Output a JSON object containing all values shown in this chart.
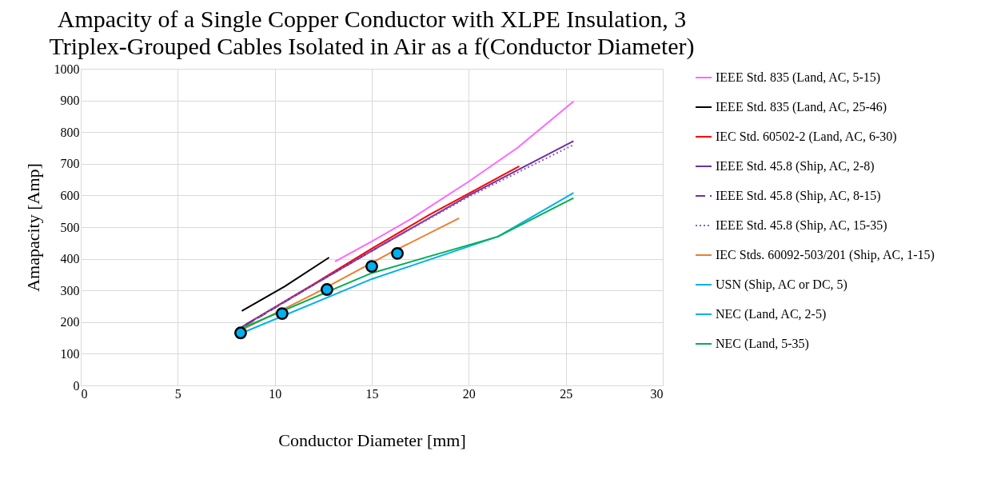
{
  "chart_data": {
    "type": "line",
    "title": "Ampacity of a Single Copper Conductor with XLPE Insulation, 3 Triplex-Grouped Cables Isolated in Air as a f(Conductor Diameter)",
    "xlabel": "Conductor Diameter [mm]",
    "ylabel": "Amapacity [Amp]",
    "xlim": [
      0,
      30
    ],
    "xticks": [
      0,
      5,
      10,
      15,
      20,
      25,
      30
    ],
    "ylim": [
      0,
      1000
    ],
    "yticks": [
      0,
      100,
      200,
      300,
      400,
      500,
      600,
      700,
      800,
      900,
      1000
    ],
    "grid": true,
    "legend": "right",
    "series": [
      {
        "name": "IEEE Std. 835 (Land, AC, 5-15)",
        "color": "#ff66ff",
        "line_style": "solid",
        "x": [
          13.1,
          15,
          17,
          20,
          22.5,
          25.4
        ],
        "values": [
          391,
          455,
          525,
          644,
          750,
          897
        ]
      },
      {
        "name": "IEEE Std. 835 (Land, AC, 25-46)",
        "color": "#000000",
        "line_style": "solid",
        "x": [
          8.3,
          10.5,
          12.8
        ],
        "values": [
          235,
          312,
          404
        ]
      },
      {
        "name": "IEC Std. 60502-2 (Land, AC, 6-30)",
        "color": "#ff0000",
        "line_style": "solid",
        "x": [
          8.5,
          12,
          15,
          18,
          22.6
        ],
        "values": [
          192,
          320,
          432,
          540,
          692
        ]
      },
      {
        "name": "IEEE Std. 45.8 (Ship, AC, 2-8)",
        "color": "#7030a0",
        "line_style": "solid",
        "x": [
          8.3,
          12,
          15,
          20,
          25.4
        ],
        "values": [
          185,
          318,
          425,
          600,
          772
        ]
      },
      {
        "name": "IEEE Std. 45.8 (Ship, AC, 8-15)",
        "color": "#7030a0",
        "line_style": "dashed",
        "x": [
          8.5,
          12,
          16
        ],
        "values": [
          190,
          318,
          460
        ]
      },
      {
        "name": "IEEE Std. 45.8 (Ship, AC, 15-35)",
        "color": "#8e5cc4",
        "line_style": "dotted",
        "x": [
          9,
          15,
          20,
          25.4
        ],
        "values": [
          210,
          425,
          596,
          760
        ]
      },
      {
        "name": "IEC Stds. 60092-503/201 (Ship, AC, 1-15)",
        "color": "#ed7d31",
        "line_style": "solid",
        "x": [
          8.3,
          12,
          16,
          19.5
        ],
        "values": [
          175,
          288,
          420,
          528
        ]
      },
      {
        "name": "USN (Ship, AC or DC, 5)",
        "type": "scatter",
        "marker": "circle",
        "color": "#00b0f0",
        "x": [
          8.24,
          10.38,
          12.69,
          15.0,
          16.32
        ],
        "values": [
          166,
          227,
          303,
          376,
          417
        ]
      },
      {
        "name": "NEC (Land, AC, 2-5)",
        "color": "#00b0f0",
        "line_style": "solid",
        "x": [
          8.2,
          15,
          21.5,
          25.4
        ],
        "values": [
          163,
          336,
          470,
          608
        ]
      },
      {
        "name": "NEC (Land, 5-35)",
        "color": "#00b050",
        "line_style": "solid",
        "x": [
          8.2,
          15,
          21.5,
          25.4
        ],
        "values": [
          178,
          355,
          470,
          592
        ]
      }
    ]
  }
}
